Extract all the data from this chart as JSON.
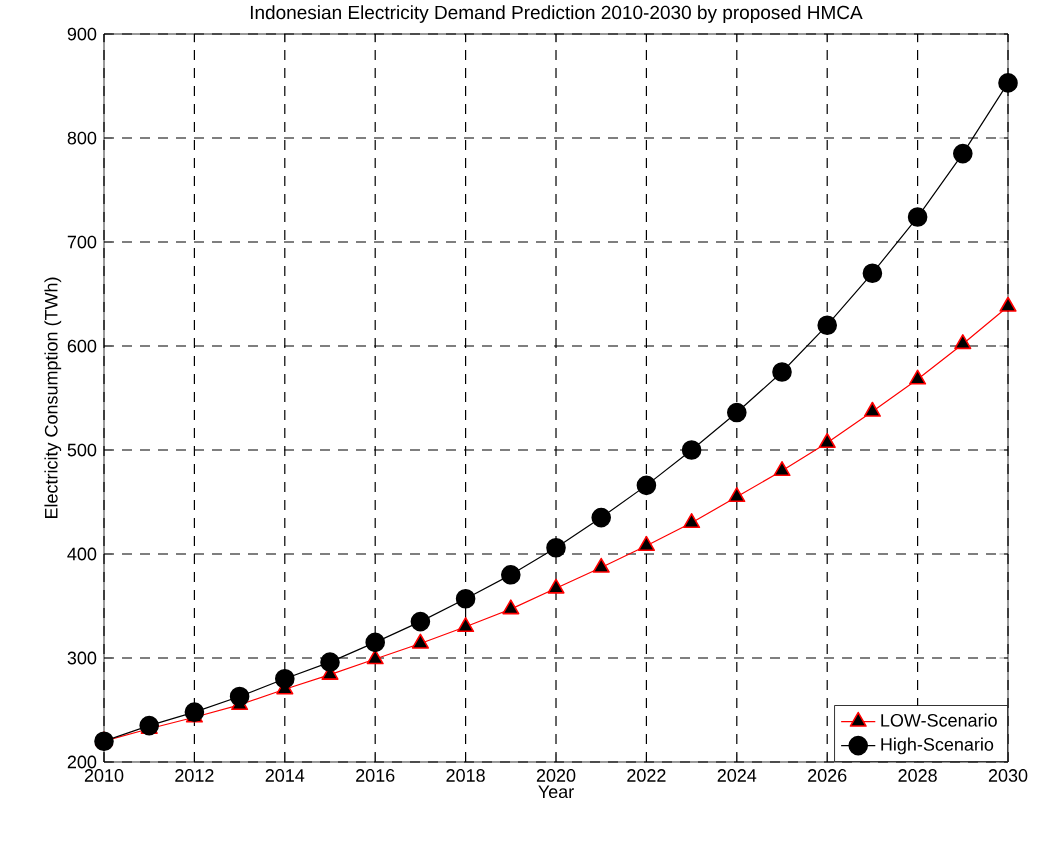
{
  "chart_data": {
    "type": "line",
    "title": "Indonesian Electricity Demand Prediction 2010-2030 by proposed HMCA",
    "xlabel": "Year",
    "ylabel": "Electricity Consumption (TWh)",
    "x": [
      2010,
      2011,
      2012,
      2013,
      2014,
      2015,
      2016,
      2017,
      2018,
      2019,
      2020,
      2021,
      2022,
      2023,
      2024,
      2025,
      2026,
      2027,
      2028,
      2029,
      2030
    ],
    "series": [
      {
        "name": "LOW-Scenario",
        "color": "#ff0000",
        "marker": "triangle",
        "values": [
          220,
          232,
          243,
          255,
          270,
          284,
          299,
          314,
          330,
          347,
          367,
          387,
          408,
          430,
          455,
          480,
          507,
          537,
          568,
          602,
          638
        ]
      },
      {
        "name": "High-Scenario",
        "color": "#000000",
        "marker": "circle",
        "values": [
          220,
          235,
          248,
          263,
          280,
          296,
          315,
          335,
          357,
          380,
          406,
          435,
          466,
          500,
          536,
          575,
          620,
          670,
          724,
          785,
          853
        ]
      }
    ],
    "xlim": [
      2010,
      2030
    ],
    "xticks": [
      2010,
      2012,
      2014,
      2016,
      2018,
      2020,
      2022,
      2024,
      2026,
      2028,
      2030
    ],
    "ylim": [
      200,
      900
    ],
    "yticks": [
      200,
      300,
      400,
      500,
      600,
      700,
      800,
      900
    ],
    "grid": true,
    "legend": "bottom right",
    "line_style": "solid"
  }
}
